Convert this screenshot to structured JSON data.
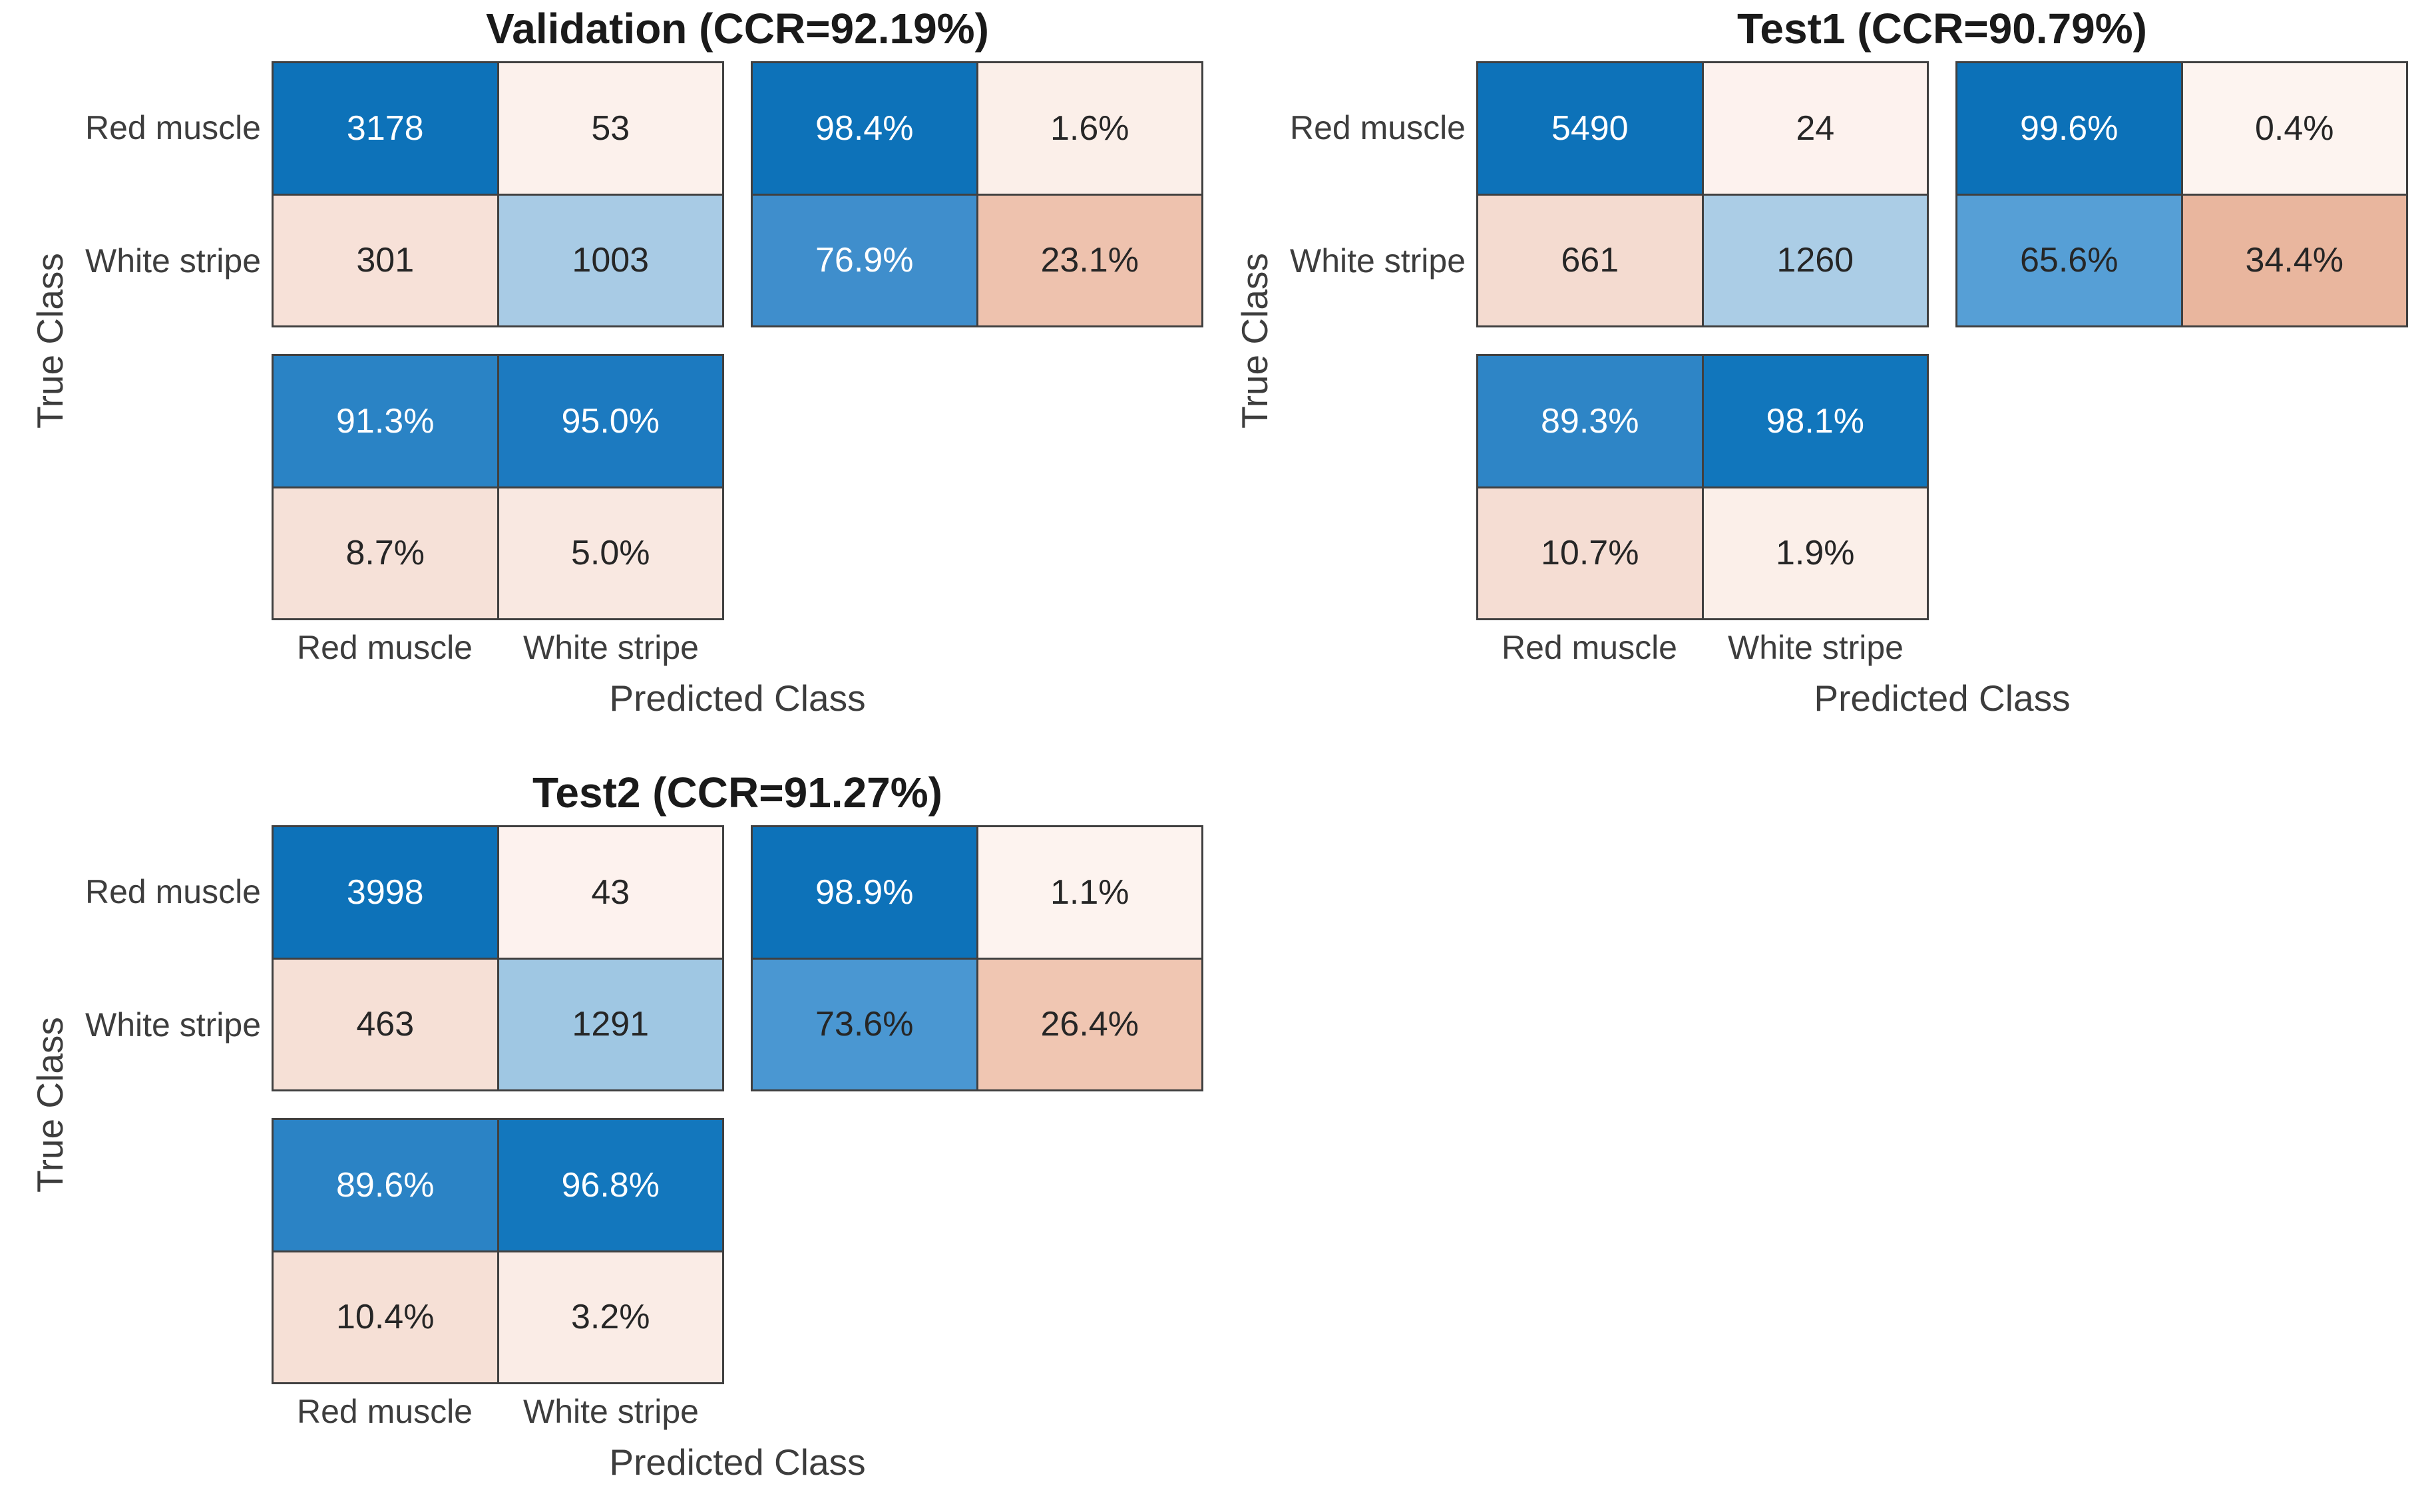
{
  "style": {
    "background": "#ffffff",
    "grid_line_color": "#404040",
    "title_color": "#1a1a1a",
    "label_color": "#3d3d3d",
    "diagonal_base_color": "#0072bd",
    "offdiagonal_base_color": "#d95319"
  },
  "chart_data": [
    {
      "id": "validation",
      "type": "heatmap",
      "title": "Validation (CCR=92.19%)",
      "ccr_pct": 92.19,
      "xlabel": "Predicted Class",
      "ylabel": "True Class",
      "classes": [
        "Red muscle",
        "White stripe"
      ],
      "matrix_counts": [
        [
          3178,
          53
        ],
        [
          301,
          1003
        ]
      ],
      "row_summary": [
        [
          "98.4%",
          "1.6%"
        ],
        [
          "76.9%",
          "23.1%"
        ]
      ],
      "col_summary": [
        [
          "91.3%",
          "95.0%"
        ],
        [
          "8.7%",
          "5.0%"
        ]
      ],
      "colors": {
        "matrix": [
          [
            "#0d72b9",
            "#fcf1ec"
          ],
          [
            "#f7e1d8",
            "#a8cbe5"
          ]
        ],
        "row": [
          [
            "#0d72b9",
            "#fbefe9"
          ],
          [
            "#3f8ecc",
            "#eec2ae"
          ]
        ],
        "col": [
          [
            "#2a83c5",
            "#1c7ac0"
          ],
          [
            "#f6e1d8",
            "#f9e8e1"
          ]
        ]
      },
      "text_colors": {
        "matrix": [
          [
            "#ffffff",
            "#262626"
          ],
          [
            "#262626",
            "#262626"
          ]
        ],
        "row": [
          [
            "#ffffff",
            "#262626"
          ],
          [
            "#ffffff",
            "#262626"
          ]
        ],
        "col": [
          [
            "#ffffff",
            "#ffffff"
          ],
          [
            "#262626",
            "#262626"
          ]
        ]
      }
    },
    {
      "id": "test1",
      "type": "heatmap",
      "title": "Test1 (CCR=90.79%)",
      "ccr_pct": 90.79,
      "xlabel": "Predicted Class",
      "ylabel": "True Class",
      "classes": [
        "Red muscle",
        "White stripe"
      ],
      "matrix_counts": [
        [
          5490,
          24
        ],
        [
          661,
          1260
        ]
      ],
      "row_summary": [
        [
          "99.6%",
          "0.4%"
        ],
        [
          "65.6%",
          "34.4%"
        ]
      ],
      "col_summary": [
        [
          "89.3%",
          "98.1%"
        ],
        [
          "10.7%",
          "1.9%"
        ]
      ],
      "colors": {
        "matrix": [
          [
            "#0d72b9",
            "#fdf2ee"
          ],
          [
            "#f4dbd0",
            "#abcde6"
          ]
        ],
        "row": [
          [
            "#0c71b8",
            "#fdf4f0"
          ],
          [
            "#569fd6",
            "#e9b69e"
          ]
        ],
        "col": [
          [
            "#2e85c6",
            "#1176bc"
          ],
          [
            "#f5ddd3",
            "#fbefe9"
          ]
        ]
      },
      "text_colors": {
        "matrix": [
          [
            "#ffffff",
            "#262626"
          ],
          [
            "#262626",
            "#262626"
          ]
        ],
        "row": [
          [
            "#ffffff",
            "#262626"
          ],
          [
            "#262626",
            "#262626"
          ]
        ],
        "col": [
          [
            "#ffffff",
            "#ffffff"
          ],
          [
            "#262626",
            "#262626"
          ]
        ]
      }
    },
    {
      "id": "test2",
      "type": "heatmap",
      "title": "Test2 (CCR=91.27%)",
      "ccr_pct": 91.27,
      "xlabel": "Predicted Class",
      "ylabel": "True Class",
      "classes": [
        "Red muscle",
        "White stripe"
      ],
      "matrix_counts": [
        [
          3998,
          43
        ],
        [
          463,
          1291
        ]
      ],
      "row_summary": [
        [
          "98.9%",
          "1.1%"
        ],
        [
          "73.6%",
          "26.4%"
        ]
      ],
      "col_summary": [
        [
          "89.6%",
          "96.8%"
        ],
        [
          "10.4%",
          "3.2%"
        ]
      ],
      "colors": {
        "matrix": [
          [
            "#0d72b9",
            "#fdf2ee"
          ],
          [
            "#f6e0d6",
            "#9fc7e3"
          ]
        ],
        "row": [
          [
            "#0d72b9",
            "#fdf3ef"
          ],
          [
            "#4a97d2",
            "#f0c6b2"
          ]
        ],
        "col": [
          [
            "#2b83c5",
            "#1377bd"
          ],
          [
            "#f6e0d6",
            "#faece6"
          ]
        ]
      },
      "text_colors": {
        "matrix": [
          [
            "#ffffff",
            "#262626"
          ],
          [
            "#262626",
            "#262626"
          ]
        ],
        "row": [
          [
            "#ffffff",
            "#262626"
          ],
          [
            "#262626",
            "#262626"
          ]
        ],
        "col": [
          [
            "#ffffff",
            "#ffffff"
          ],
          [
            "#262626",
            "#262626"
          ]
        ]
      }
    }
  ]
}
